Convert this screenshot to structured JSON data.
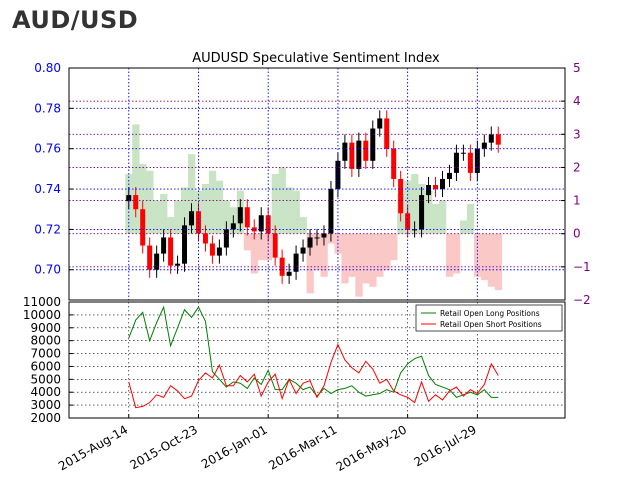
{
  "header": {
    "title": "AUD/USD"
  },
  "chart_data": [
    {
      "type": "line",
      "title": "AUDUSD Speculative Sentiment Index",
      "xlabel": "",
      "ylabel": "",
      "x_tick_labels": [
        "2015-Aug-14",
        "2015-Oct-23",
        "2016-Jan-01",
        "2016-Mar-11",
        "2016-May-20",
        "2016-Jul-29"
      ],
      "left_axis": {
        "ylim": [
          0.685,
          0.8
        ],
        "ticks": [
          "0.70",
          "0.72",
          "0.74",
          "0.76",
          "0.78",
          "0.80"
        ],
        "color": "#0000ff"
      },
      "right_axis": {
        "ylim": [
          -2,
          5
        ],
        "ticks": [
          "−2",
          "−1",
          "0",
          "1",
          "2",
          "3",
          "4",
          "5"
        ],
        "color": "#800080"
      },
      "grid": true,
      "series": [
        {
          "kind": "candlestick-price",
          "axis": "left",
          "dates": [
            "2015-08-14",
            "2015-08-21",
            "2015-08-28",
            "2015-09-04",
            "2015-09-11",
            "2015-09-18",
            "2015-09-25",
            "2015-10-02",
            "2015-10-09",
            "2015-10-16",
            "2015-10-23",
            "2015-10-30",
            "2015-11-06",
            "2015-11-13",
            "2015-11-20",
            "2015-11-27",
            "2015-12-04",
            "2015-12-11",
            "2015-12-18",
            "2015-12-25",
            "2016-01-01",
            "2016-01-08",
            "2016-01-15",
            "2016-01-22",
            "2016-01-29",
            "2016-02-05",
            "2016-02-12",
            "2016-02-19",
            "2016-02-26",
            "2016-03-04",
            "2016-03-11",
            "2016-03-18",
            "2016-03-25",
            "2016-04-01",
            "2016-04-08",
            "2016-04-15",
            "2016-04-22",
            "2016-04-29",
            "2016-05-06",
            "2016-05-13",
            "2016-05-20",
            "2016-05-27",
            "2016-06-03",
            "2016-06-10",
            "2016-06-17",
            "2016-06-24",
            "2016-07-01",
            "2016-07-08",
            "2016-07-15",
            "2016-07-22",
            "2016-07-29",
            "2016-08-05",
            "2016-08-12",
            "2016-08-19"
          ],
          "close": [
            0.737,
            0.73,
            0.712,
            0.7,
            0.708,
            0.716,
            0.702,
            0.703,
            0.722,
            0.729,
            0.718,
            0.713,
            0.707,
            0.711,
            0.72,
            0.723,
            0.731,
            0.721,
            0.719,
            0.727,
            0.718,
            0.706,
            0.697,
            0.699,
            0.708,
            0.711,
            0.716,
            0.716,
            0.718,
            0.74,
            0.754,
            0.763,
            0.75,
            0.764,
            0.754,
            0.77,
            0.775,
            0.76,
            0.745,
            0.728,
            0.72,
            0.72,
            0.737,
            0.742,
            0.74,
            0.745,
            0.748,
            0.758,
            0.758,
            0.748,
            0.76,
            0.763,
            0.767,
            0.762
          ]
        },
        {
          "kind": "sentiment-ratio",
          "axis": "right",
          "values": [
            1.8,
            3.3,
            2.1,
            1.9,
            1.0,
            1.2,
            0.5,
            1.0,
            1.4,
            2.4,
            1.3,
            1.5,
            1.9,
            1.6,
            1.0,
            0.8,
            1.3,
            -0.5,
            -1.2,
            -0.8,
            -0.8,
            1.8,
            2.0,
            1.4,
            1.3,
            0.5,
            -1.8,
            -1.1,
            -1.3,
            -0.3,
            -0.6,
            -1.5,
            -1.3,
            -1.9,
            -1.5,
            -1.6,
            -1.3,
            -1.1,
            -0.8,
            1.2,
            1.6,
            1.8,
            1.5,
            1.3,
            0.9,
            1.0,
            -1.3,
            -1.2,
            0.4,
            0.9,
            -1.3,
            -1.4,
            -1.6,
            -1.7
          ]
        }
      ]
    },
    {
      "type": "line",
      "xlabel": "",
      "ylabel": "",
      "ylim": [
        2000,
        11000
      ],
      "y_ticks": [
        "2000",
        "3000",
        "4000",
        "5000",
        "6000",
        "7000",
        "8000",
        "9000",
        "10000",
        "11000"
      ],
      "grid": true,
      "legend_position": "top-right",
      "series": [
        {
          "name": "Retail Open Long Positions",
          "color": "#008000",
          "values": [
            8200,
            9600,
            10200,
            8000,
            9400,
            10600,
            7600,
            9000,
            10400,
            9800,
            10600,
            9500,
            5600,
            5000,
            4400,
            4800,
            4700,
            4300,
            5100,
            4600,
            5700,
            4200,
            4200,
            5000,
            4700,
            4200,
            4400,
            3700,
            4300,
            3900,
            4200,
            4300,
            4500,
            4000,
            3700,
            3800,
            3900,
            4200,
            4000,
            5500,
            6200,
            6600,
            6800,
            5300,
            4600,
            4400,
            4200,
            3600,
            3800,
            4000,
            3800,
            4200,
            3600,
            3600
          ]
        },
        {
          "name": "Retail Open Short Positions",
          "color": "#ff0000",
          "values": [
            4800,
            2800,
            2900,
            3200,
            3800,
            3600,
            4500,
            4100,
            3500,
            3700,
            4900,
            5500,
            5100,
            6100,
            4500,
            4500,
            5300,
            4800,
            5400,
            3700,
            4800,
            5400,
            3500,
            5000,
            3900,
            4700,
            4900,
            3600,
            4500,
            6300,
            7700,
            6500,
            5900,
            5500,
            6400,
            5800,
            4700,
            5000,
            4100,
            3800,
            3600,
            3200,
            4800,
            3300,
            3800,
            3400,
            4100,
            4400,
            3700,
            4200,
            3900,
            4600,
            6200,
            5300
          ]
        }
      ]
    }
  ]
}
